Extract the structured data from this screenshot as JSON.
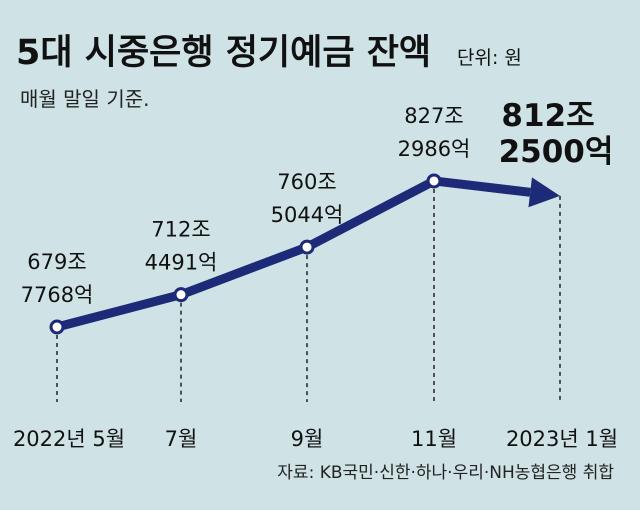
{
  "chart_data": {
    "type": "line",
    "title": "5대 시중은행 정기예금 잔액",
    "unit": "단위: 원",
    "subtitle": "매월 말일 기준.",
    "categories": [
      "2022년 5월",
      "7월",
      "9월",
      "11월",
      "2023년 1월"
    ],
    "values": [
      679.7768,
      712.4491,
      760.5044,
      827.2986,
      812.25
    ],
    "value_unit": "조원",
    "data_labels": [
      [
        "679조",
        "7768억"
      ],
      [
        "712조",
        "4491억"
      ],
      [
        "760조",
        "5044억"
      ],
      [
        "827조",
        "2986억"
      ],
      [
        "812조",
        "2500억"
      ]
    ],
    "last_point_style": "arrow, bold label",
    "grid": false,
    "source": "자료: KB국민·신한·하나·우리·NH농협은행 취합",
    "colors": {
      "line": "#1c2a78",
      "background": "#cfe3e6",
      "text": "#111111"
    }
  }
}
